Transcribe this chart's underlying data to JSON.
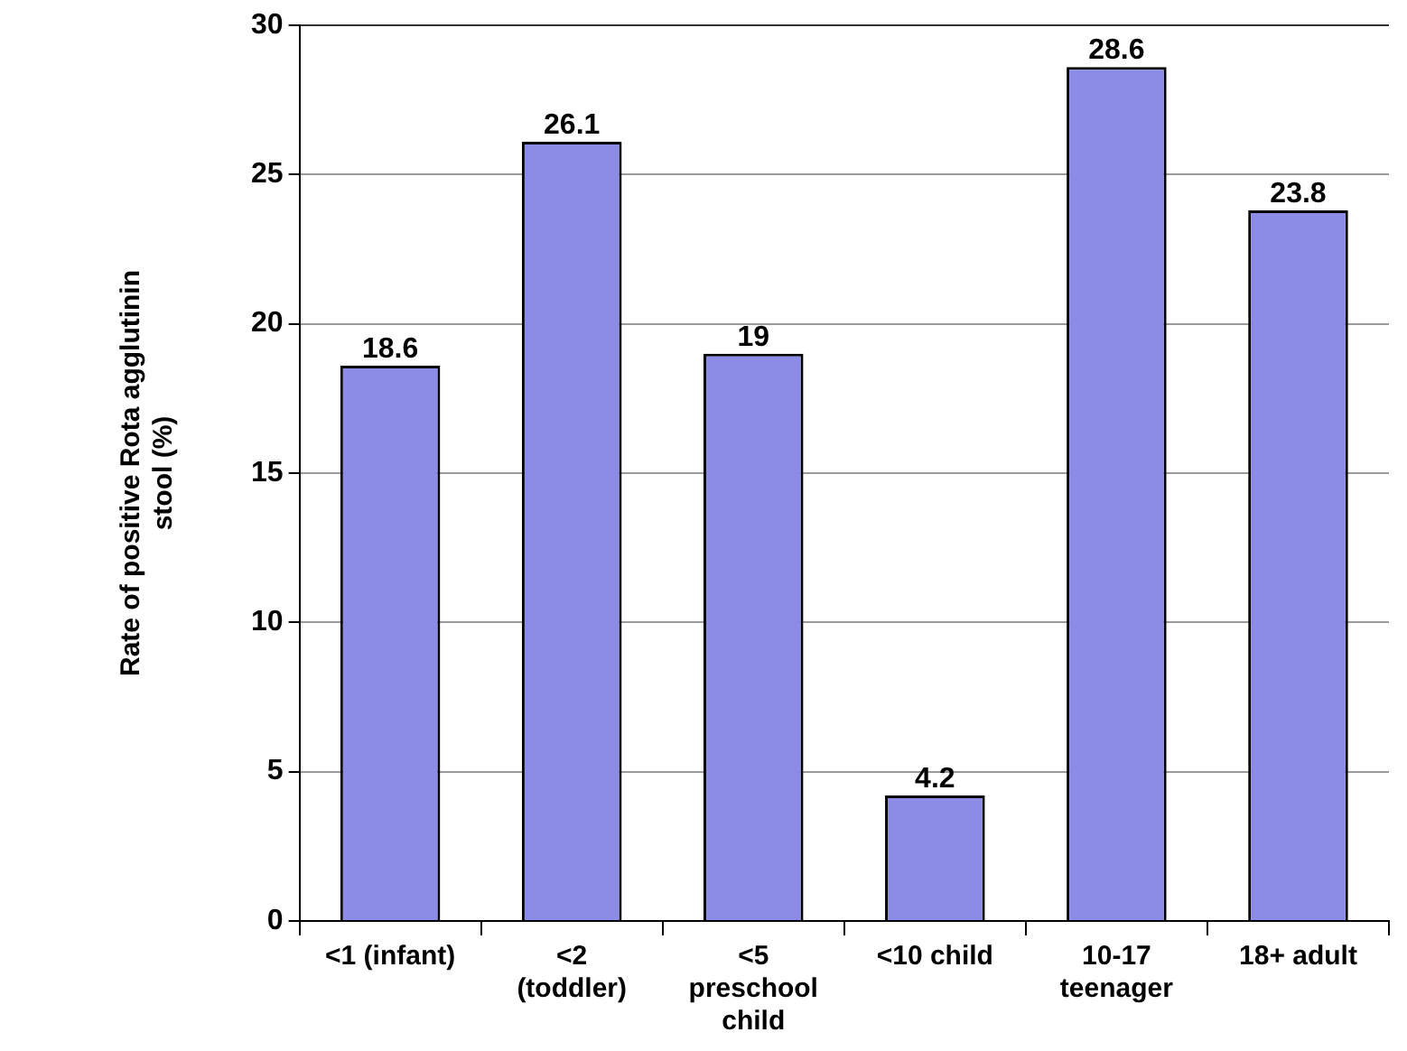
{
  "chart_data": {
    "type": "bar",
    "ylabel": "Rate of positive Rota agglutinin stool (%)",
    "categories": [
      "<1 (infant)",
      "<2 (toddler)",
      "<5 preschool child",
      "<10 child",
      "10-17 teenager",
      "18+ adult"
    ],
    "values": [
      18.6,
      26.1,
      19,
      4.2,
      28.6,
      23.8
    ],
    "color": "#8c8ce6",
    "ylim": [
      0,
      30
    ],
    "yticks": [
      0,
      5,
      10,
      15,
      20,
      25,
      30
    ],
    "grid": "y",
    "data_labels": true,
    "legend": false
  }
}
